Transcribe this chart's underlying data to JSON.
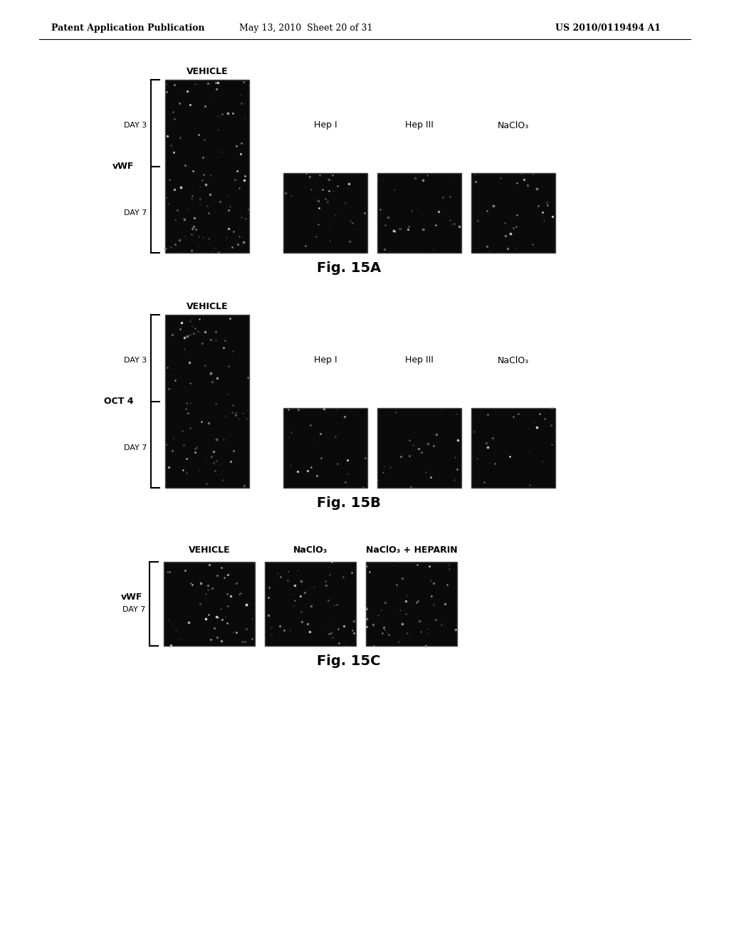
{
  "header_left": "Patent Application Publication",
  "header_mid": "May 13, 2010  Sheet 20 of 31",
  "header_right": "US 2010/0119494 A1",
  "fig_a_title": "Fig. 15A",
  "fig_b_title": "Fig. 15B",
  "fig_c_title": "Fig. 15C",
  "fig_a": {
    "row_label": "vWF",
    "col_headers_day3": [
      "VEHICLE"
    ],
    "col_headers_mid": [
      "Hep I",
      "Hep III",
      "NaClO₃"
    ],
    "row_day_labels": [
      "DAY 3",
      "DAY 7"
    ]
  },
  "fig_b": {
    "row_label": "OCT 4",
    "col_headers_day3": [
      "VEHICLE"
    ],
    "col_headers_mid": [
      "Hep I",
      "Hep III",
      "NaClO₃"
    ],
    "row_day_labels": [
      "DAY 3",
      "DAY 7"
    ]
  },
  "fig_c": {
    "row_label": "vWF",
    "col_headers": [
      "VEHICLE",
      "NaClO₃",
      "NaClO₃ + HEPARIN"
    ],
    "row_day_labels": [
      "DAY 7"
    ]
  },
  "bg_color": "#ffffff",
  "image_bg": "#0a0a0a",
  "text_color": "#000000"
}
